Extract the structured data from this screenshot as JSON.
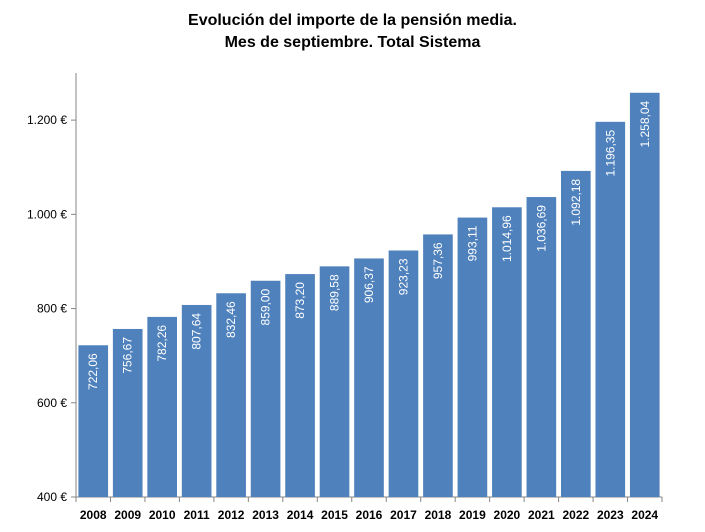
{
  "chart_data": {
    "type": "bar",
    "title_line1": "Evolución del importe de la pensión media.",
    "title_line2": "Mes de septiembre. Total Sistema",
    "categories": [
      "2008",
      "2009",
      "2010",
      "2011",
      "2012",
      "2013",
      "2014",
      "2015",
      "2016",
      "2017",
      "2018",
      "2019",
      "2020",
      "2021",
      "2022",
      "2023",
      "2024"
    ],
    "values": [
      722.06,
      756.67,
      782.26,
      807.64,
      832.46,
      859.0,
      873.2,
      889.58,
      906.37,
      923.23,
      957.36,
      993.11,
      1014.96,
      1036.69,
      1092.18,
      1196.35,
      1258.04
    ],
    "data_labels": [
      "722,06",
      "756,67",
      "782,26",
      "807,64",
      "832,46",
      "859,00",
      "873,20",
      "889,58",
      "906,37",
      "923,23",
      "957,36",
      "993,11",
      "1.014,96",
      "1.036,69",
      "1.092,18",
      "1.196,35",
      "1.258,04"
    ],
    "ylim": [
      400,
      1300
    ],
    "yticks": [
      400,
      600,
      800,
      1000,
      1200
    ],
    "ytick_labels": [
      "400 €",
      "600 €",
      "800 €",
      "1.000 €",
      "1.200 €"
    ],
    "bar_color": "#4f81bd",
    "grid": false,
    "legend": "none"
  }
}
